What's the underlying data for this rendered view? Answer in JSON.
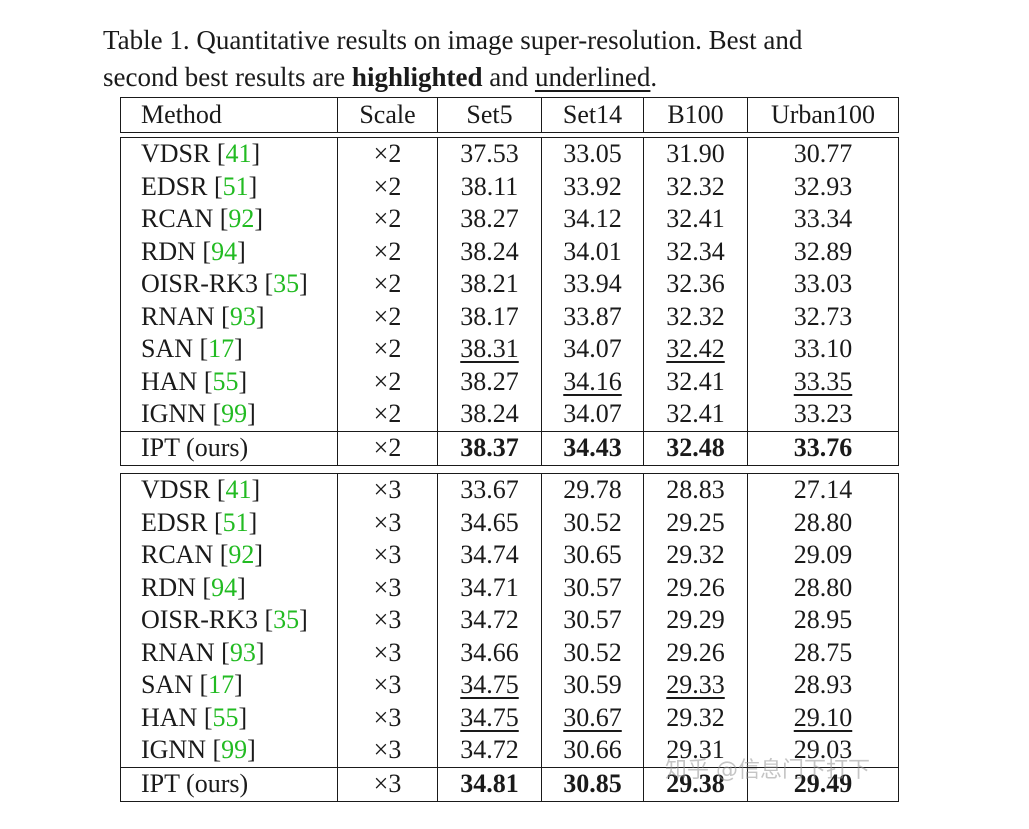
{
  "caption": {
    "line1": "Table 1. Quantitative results on image super-resolution. Best and",
    "line2_pre": "second best results are ",
    "highlighted": "highlighted",
    "and": " and ",
    "underlined": "underlined",
    "period": "."
  },
  "columns": [
    "Method",
    "Scale",
    "Set5",
    "Set14",
    "B100",
    "Urban100"
  ],
  "groups": [
    {
      "rows": [
        {
          "name": "VDSR [",
          "ref": "41",
          "close": "]",
          "scale": "×2",
          "vals": [
            "37.53",
            "33.05",
            "31.90",
            "30.77"
          ],
          "fmt": [
            "",
            "",
            "",
            ""
          ]
        },
        {
          "name": "EDSR [",
          "ref": "51",
          "close": "]",
          "scale": "×2",
          "vals": [
            "38.11",
            "33.92",
            "32.32",
            "32.93"
          ],
          "fmt": [
            "",
            "",
            "",
            ""
          ]
        },
        {
          "name": "RCAN [",
          "ref": "92",
          "close": "]",
          "scale": "×2",
          "vals": [
            "38.27",
            "34.12",
            "32.41",
            "33.34"
          ],
          "fmt": [
            "",
            "",
            "",
            ""
          ]
        },
        {
          "name": "RDN [",
          "ref": "94",
          "close": "]",
          "scale": "×2",
          "vals": [
            "38.24",
            "34.01",
            "32.34",
            "32.89"
          ],
          "fmt": [
            "",
            "",
            "",
            ""
          ]
        },
        {
          "name": "OISR-RK3 [",
          "ref": "35",
          "close": "]",
          "scale": "×2",
          "vals": [
            "38.21",
            "33.94",
            "32.36",
            "33.03"
          ],
          "fmt": [
            "",
            "",
            "",
            ""
          ]
        },
        {
          "name": "RNAN [",
          "ref": "93",
          "close": "]",
          "scale": "×2",
          "vals": [
            "38.17",
            "33.87",
            "32.32",
            "32.73"
          ],
          "fmt": [
            "",
            "",
            "",
            ""
          ]
        },
        {
          "name": "SAN [",
          "ref": "17",
          "close": "]",
          "scale": "×2",
          "vals": [
            "38.31",
            "34.07",
            "32.42",
            "33.10"
          ],
          "fmt": [
            "second",
            "",
            "second",
            ""
          ]
        },
        {
          "name": "HAN [",
          "ref": "55",
          "close": "]",
          "scale": "×2",
          "vals": [
            "38.27",
            "34.16",
            "32.41",
            "33.35"
          ],
          "fmt": [
            "",
            "second",
            "",
            "second"
          ]
        },
        {
          "name": "IGNN [",
          "ref": "99",
          "close": "]",
          "scale": "×2",
          "vals": [
            "38.24",
            "34.07",
            "32.41",
            "33.23"
          ],
          "fmt": [
            "",
            "",
            "",
            ""
          ]
        }
      ],
      "ours": {
        "name": "IPT (ours)",
        "scale": "×2",
        "vals": [
          "38.37",
          "34.43",
          "32.48",
          "33.76"
        ],
        "fmt": [
          "best",
          "best",
          "best",
          "best"
        ]
      }
    },
    {
      "rows": [
        {
          "name": "VDSR [",
          "ref": "41",
          "close": "]",
          "scale": "×3",
          "vals": [
            "33.67",
            "29.78",
            "28.83",
            "27.14"
          ],
          "fmt": [
            "",
            "",
            "",
            ""
          ]
        },
        {
          "name": "EDSR [",
          "ref": "51",
          "close": "]",
          "scale": "×3",
          "vals": [
            "34.65",
            "30.52",
            "29.25",
            "28.80"
          ],
          "fmt": [
            "",
            "",
            "",
            ""
          ]
        },
        {
          "name": "RCAN [",
          "ref": "92",
          "close": "]",
          "scale": "×3",
          "vals": [
            "34.74",
            "30.65",
            "29.32",
            "29.09"
          ],
          "fmt": [
            "",
            "",
            "",
            ""
          ]
        },
        {
          "name": "RDN [",
          "ref": "94",
          "close": "]",
          "scale": "×3",
          "vals": [
            "34.71",
            "30.57",
            "29.26",
            "28.80"
          ],
          "fmt": [
            "",
            "",
            "",
            ""
          ]
        },
        {
          "name": "OISR-RK3 [",
          "ref": "35",
          "close": "]",
          "scale": "×3",
          "vals": [
            "34.72",
            "30.57",
            "29.29",
            "28.95"
          ],
          "fmt": [
            "",
            "",
            "",
            ""
          ]
        },
        {
          "name": "RNAN [",
          "ref": "93",
          "close": "]",
          "scale": "×3",
          "vals": [
            "34.66",
            "30.52",
            "29.26",
            "28.75"
          ],
          "fmt": [
            "",
            "",
            "",
            ""
          ]
        },
        {
          "name": "SAN [",
          "ref": "17",
          "close": "]",
          "scale": "×3",
          "vals": [
            "34.75",
            "30.59",
            "29.33",
            "28.93"
          ],
          "fmt": [
            "second",
            "",
            "second",
            ""
          ]
        },
        {
          "name": "HAN [",
          "ref": "55",
          "close": "]",
          "scale": "×3",
          "vals": [
            "34.75",
            "30.67",
            "29.32",
            "29.10"
          ],
          "fmt": [
            "second",
            "second",
            "",
            "second"
          ]
        },
        {
          "name": "IGNN [",
          "ref": "99",
          "close": "]",
          "scale": "×3",
          "vals": [
            "34.72",
            "30.66",
            "29.31",
            "29.03"
          ],
          "fmt": [
            "",
            "",
            "",
            ""
          ]
        }
      ],
      "ours": {
        "name": "IPT (ours)",
        "scale": "×3",
        "vals": [
          "34.81",
          "30.85",
          "29.38",
          "29.49"
        ],
        "fmt": [
          "best",
          "best",
          "best",
          "best"
        ]
      }
    }
  ],
  "watermark": "知乎 @信息门下打下",
  "colors": {
    "reference_link": "#22bb22",
    "text": "#1a1a1a"
  }
}
